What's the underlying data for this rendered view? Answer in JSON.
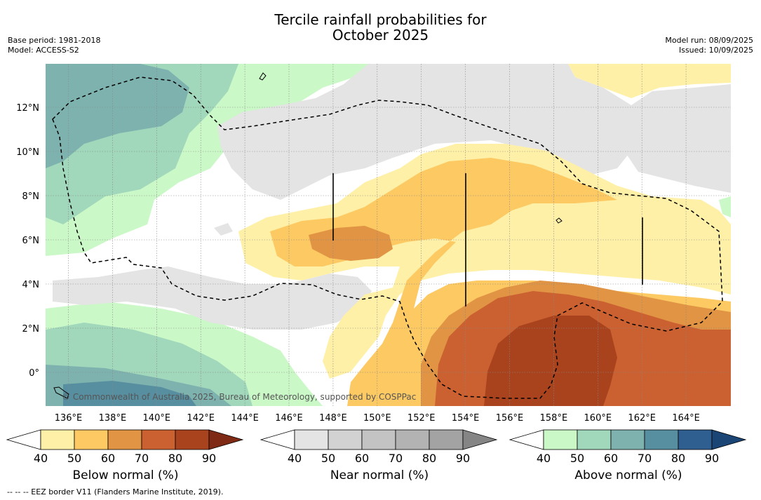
{
  "header": {
    "title_line1": "Tercile rainfall probabilities for",
    "title_line2": "October 2025",
    "base_period": "Base period: 1981-2018",
    "model": "Model: ACCESS-S2",
    "model_run": "Model run: 08/09/2025",
    "issued": "Issued: 10/09/2025"
  },
  "map": {
    "lon_ticks": [
      "136°E",
      "138°E",
      "140°E",
      "142°E",
      "144°E",
      "146°E",
      "148°E",
      "150°E",
      "152°E",
      "154°E",
      "156°E",
      "158°E",
      "160°E",
      "162°E",
      "164°E"
    ],
    "lat_ticks": [
      "12°N",
      "10°N",
      "8°N",
      "6°N",
      "4°N",
      "2°N",
      "0°"
    ],
    "copyright": "© Commonwealth of Australia 2025, Bureau of Meteorology, supported by COSPPac"
  },
  "colorbars": [
    {
      "label": "Below normal (%)",
      "ticks": [
        "40",
        "50",
        "60",
        "70",
        "80",
        "90"
      ],
      "colors": [
        "#ffffff",
        "#fff0a8",
        "#fdc963",
        "#e09444",
        "#cb6030",
        "#a9431e",
        "#7f2a14"
      ]
    },
    {
      "label": "Near normal (%)",
      "ticks": [
        "40",
        "50",
        "60",
        "70",
        "80",
        "90"
      ],
      "colors": [
        "#ffffff",
        "#e4e4e4",
        "#d2d2d2",
        "#c3c3c3",
        "#b3b3b3",
        "#a3a3a3",
        "#858585"
      ]
    },
    {
      "label": "Above normal (%)",
      "ticks": [
        "40",
        "50",
        "60",
        "70",
        "80",
        "90"
      ],
      "colors": [
        "#ffffff",
        "#caf8c7",
        "#a1d7bb",
        "#7eb2ae",
        "#588fa0",
        "#2f5e90",
        "#1a4575"
      ]
    }
  ],
  "footnote": "-- -- -- EEZ border V11 (Flanders Marine Institute, 2019)."
}
